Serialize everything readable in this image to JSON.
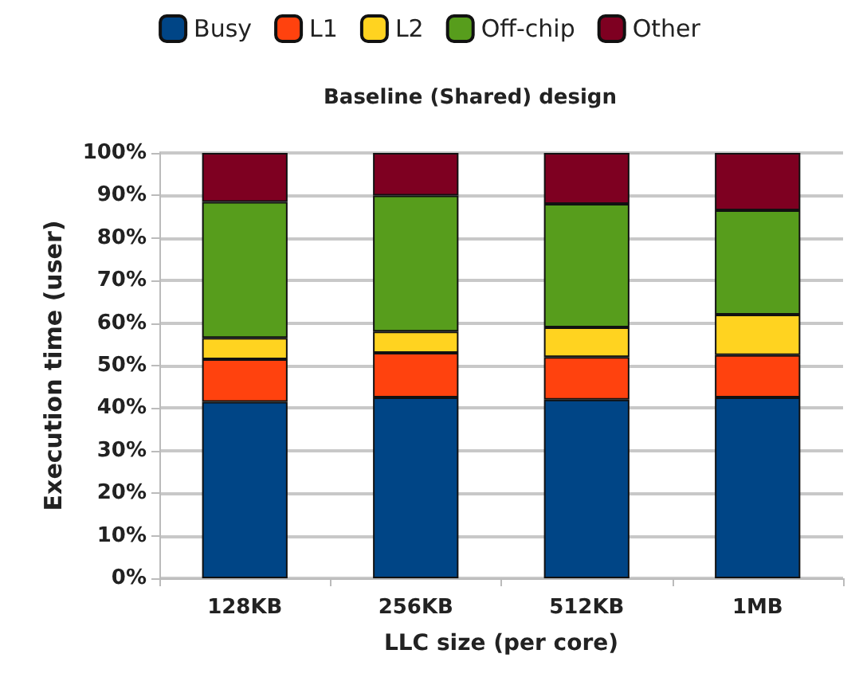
{
  "chart_data": {
    "type": "bar",
    "title": "Baseline (Shared) design",
    "xlabel": "LLC size (per core)",
    "ylabel": "Execution time (user)",
    "categories": [
      "128KB",
      "256KB",
      "512KB",
      "1MB"
    ],
    "stacked": true,
    "legend": "top",
    "grid": "y",
    "ylim": [
      0,
      100
    ],
    "yticks": [
      {
        "value": 0,
        "label": "0%"
      },
      {
        "value": 10,
        "label": "10%"
      },
      {
        "value": 20,
        "label": "20%"
      },
      {
        "value": 30,
        "label": "30%"
      },
      {
        "value": 40,
        "label": "40%"
      },
      {
        "value": 50,
        "label": "50%"
      },
      {
        "value": 60,
        "label": "60%"
      },
      {
        "value": 70,
        "label": "70%"
      },
      {
        "value": 80,
        "label": "80%"
      },
      {
        "value": 90,
        "label": "90%"
      },
      {
        "value": 100,
        "label": "100%"
      }
    ],
    "series": [
      {
        "name": "Busy",
        "color": "#004586",
        "values": [
          41.5,
          42.5,
          42,
          42.5
        ]
      },
      {
        "name": "L1",
        "color": "#ff420e",
        "values": [
          10,
          10.5,
          10,
          10
        ]
      },
      {
        "name": "L2",
        "color": "#ffd320",
        "values": [
          5,
          5,
          7,
          9.5
        ]
      },
      {
        "name": "Off-chip",
        "color": "#579d1c",
        "values": [
          32,
          32,
          29,
          24.5
        ]
      },
      {
        "name": "Other",
        "color": "#7e0021",
        "values": [
          11.5,
          10,
          12,
          13.5
        ]
      }
    ]
  }
}
